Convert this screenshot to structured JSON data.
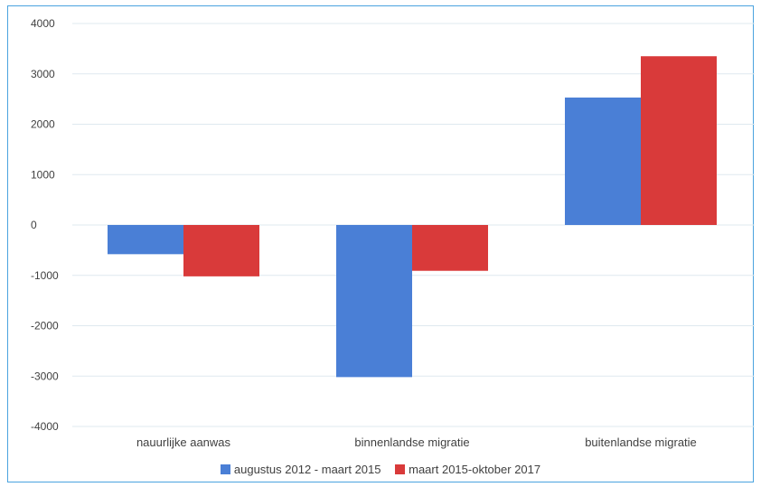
{
  "chart_data": {
    "type": "bar",
    "categories": [
      "nauurlijke aanwas",
      "binnenlandse migratie",
      "buitenlandse migratie"
    ],
    "series": [
      {
        "name": "augustus 2012 - maart 2015",
        "color": "#4a7fd6",
        "values": [
          -580,
          -3020,
          2530
        ]
      },
      {
        "name": "maart 2015-oktober 2017",
        "color": "#d93a3a",
        "values": [
          -1020,
          -910,
          3350
        ]
      }
    ],
    "ylim": [
      -4000,
      4000
    ],
    "yticks": [
      4000,
      3000,
      2000,
      1000,
      0,
      -1000,
      -2000,
      -3000,
      -4000
    ],
    "ytick_labels": [
      "4000",
      "3000",
      "2000",
      "1000",
      "0",
      "-1000",
      "-2000",
      "-3000",
      "-4000"
    ],
    "grid": true,
    "legend_position": "bottom",
    "title": "",
    "xlabel": "",
    "ylabel": "",
    "gridline_color": "#dfe9ef"
  }
}
